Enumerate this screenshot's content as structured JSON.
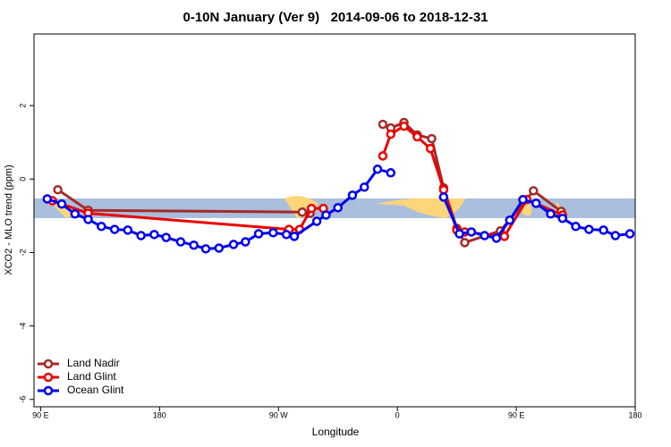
{
  "chart_data": {
    "type": "line",
    "title": "0-10N January (Ver 9)   2014-09-06 to 2018-12-31",
    "x_label": "Longitude",
    "y_label": "XCO2 - MLO trend (ppm)",
    "xlim": [
      85,
      540
    ],
    "ylim": [
      -6.2,
      3.95
    ],
    "xticks": [
      {
        "value": 90,
        "label": "90 E"
      },
      180,
      {
        "value": 270,
        "label": "90 W"
      },
      {
        "value": 360,
        "label": "0"
      },
      {
        "value": 450,
        "label": "90 E"
      },
      {
        "value": 540,
        "label": "180"
      }
    ],
    "yticks": [
      -6,
      -4,
      -2,
      0,
      2
    ],
    "legend": "bottom-left",
    "series": [
      {
        "name": "Land Nadir",
        "color": "#a52a2a",
        "x": [
          103,
          126,
          288,
          294,
          320,
          349,
          355,
          365,
          375,
          386,
          395,
          405,
          411,
          438,
          463,
          484
        ],
        "values": [
          -0.29,
          -0.85,
          -0.9,
          -0.93,
          null,
          1.49,
          1.39,
          1.54,
          1.2,
          1.1,
          -0.24,
          -1.34,
          -1.73,
          -1.41,
          -0.32,
          -0.88
        ]
      },
      {
        "name": "Land Glint",
        "color": "#ee0000",
        "x": [
          99,
          126,
          278,
          286,
          295,
          304,
          330,
          349,
          355,
          365,
          375,
          385,
          395,
          405,
          411,
          441,
          458,
          485
        ],
        "values": [
          -0.59,
          -0.93,
          -1.37,
          -1.37,
          -0.8,
          -0.8,
          null,
          0.63,
          1.22,
          1.44,
          1.15,
          0.83,
          -0.29,
          -1.39,
          -1.44,
          -1.56,
          -0.56,
          -0.98
        ]
      },
      {
        "name": "Ocean Glint",
        "color": "#0000ee",
        "x": [
          95,
          106,
          116,
          126,
          136,
          146,
          156,
          166,
          176,
          185,
          196,
          206,
          215,
          225,
          236,
          245,
          255,
          266,
          276,
          282,
          299,
          306,
          315,
          326,
          335,
          345,
          355,
          375,
          395,
          407,
          416,
          426,
          435,
          445,
          455,
          465,
          476,
          485,
          495,
          505,
          516,
          525,
          536
        ],
        "values": [
          -0.54,
          -0.68,
          -0.95,
          -1.1,
          -1.29,
          -1.37,
          -1.39,
          -1.54,
          -1.51,
          -1.59,
          -1.71,
          -1.8,
          -1.9,
          -1.88,
          -1.78,
          -1.71,
          -1.49,
          -1.46,
          -1.51,
          -1.56,
          -1.15,
          -0.98,
          -0.78,
          -0.44,
          -0.22,
          0.27,
          0.17,
          null,
          -0.49,
          -1.49,
          -1.44,
          -1.54,
          -1.61,
          -1.12,
          -0.56,
          -0.66,
          -0.95,
          -1.07,
          -1.29,
          -1.37,
          -1.39,
          -1.54,
          -1.49
        ]
      }
    ]
  }
}
